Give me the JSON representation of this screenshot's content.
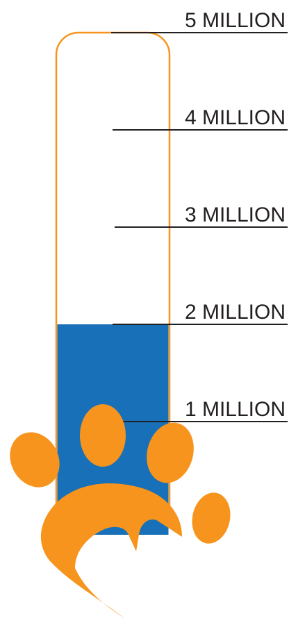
{
  "chart_data": {
    "type": "bar",
    "title": "",
    "xlabel": "",
    "ylabel": "",
    "ylim": [
      0,
      5000000
    ],
    "value": 2000000,
    "ticks": [
      {
        "value": 1000000,
        "label": "1 MILLION"
      },
      {
        "value": 2000000,
        "label": "2 MILLION"
      },
      {
        "value": 3000000,
        "label": "3 MILLION"
      },
      {
        "value": 4000000,
        "label": "4 MILLION"
      },
      {
        "value": 5000000,
        "label": "5 MILLION"
      }
    ],
    "grid": false,
    "legend": "none"
  },
  "colors": {
    "fill": "#1770b8",
    "outline": "#f7941d",
    "paw": "#f7941d",
    "tick_line": "#231f20",
    "text": "#231f20"
  },
  "icons": {
    "paw": "paw-print-icon"
  }
}
